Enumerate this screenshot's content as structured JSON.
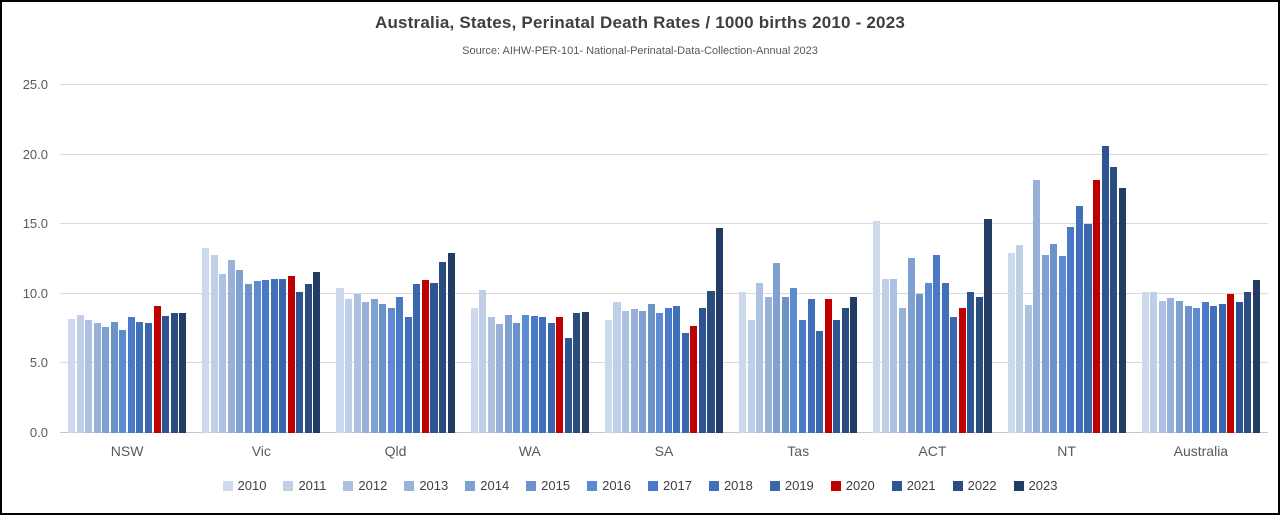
{
  "chart_data": {
    "type": "bar",
    "title": "Australia, States, Perinatal Death Rates / 1000 births 2010 - 2023",
    "subtitle": "Source: AIHW-PER-101- National-Perinatal-Data-Collection-Annual 2023",
    "categories": [
      "NSW",
      "Vic",
      "Qld",
      "WA",
      "SA",
      "Tas",
      "ACT",
      "NT",
      "Australia"
    ],
    "ylim": [
      0,
      25
    ],
    "grid": true,
    "legend_position": "bottom",
    "highlight_color": "#c00000",
    "yticks": [
      {
        "v": 0,
        "label": "0.0"
      },
      {
        "v": 5,
        "label": "5.0"
      },
      {
        "v": 10,
        "label": "10.0"
      },
      {
        "v": 15,
        "label": "15.0"
      },
      {
        "v": 20,
        "label": "20.0"
      },
      {
        "v": 25,
        "label": "25.0"
      }
    ],
    "series": [
      {
        "name": "2010",
        "color": "#cdd9ec",
        "values": [
          8.2,
          13.3,
          10.4,
          9.0,
          8.1,
          10.1,
          15.2,
          12.9,
          10.1
        ]
      },
      {
        "name": "2011",
        "color": "#c0cfe8",
        "values": [
          8.5,
          12.8,
          9.6,
          10.3,
          9.4,
          8.1,
          11.1,
          13.5,
          10.1
        ]
      },
      {
        "name": "2012",
        "color": "#adc2e2",
        "values": [
          8.1,
          11.4,
          10.0,
          8.3,
          8.8,
          10.8,
          11.1,
          9.2,
          9.5
        ]
      },
      {
        "name": "2013",
        "color": "#97b1d8",
        "values": [
          7.9,
          12.4,
          9.4,
          7.8,
          8.9,
          9.8,
          9.0,
          18.2,
          9.7
        ]
      },
      {
        "name": "2014",
        "color": "#7fa1d1",
        "values": [
          7.6,
          11.7,
          9.6,
          8.5,
          8.8,
          12.2,
          12.6,
          12.8,
          9.5
        ]
      },
      {
        "name": "2015",
        "color": "#6b92c9",
        "values": [
          8.0,
          10.7,
          9.3,
          7.9,
          9.3,
          9.8,
          10.0,
          13.6,
          9.1
        ]
      },
      {
        "name": "2016",
        "color": "#5d8bd2",
        "values": [
          7.4,
          10.9,
          9.0,
          8.5,
          8.6,
          10.4,
          10.8,
          12.7,
          9.0
        ]
      },
      {
        "name": "2017",
        "color": "#4a7ac7",
        "values": [
          8.3,
          11.0,
          9.8,
          8.4,
          9.0,
          8.1,
          12.8,
          14.8,
          9.4
        ]
      },
      {
        "name": "2018",
        "color": "#4070ba",
        "values": [
          8.0,
          11.1,
          8.3,
          8.3,
          9.1,
          9.6,
          10.8,
          16.3,
          9.1
        ]
      },
      {
        "name": "2019",
        "color": "#3a66ab",
        "values": [
          7.9,
          11.1,
          10.7,
          7.9,
          7.2,
          7.3,
          8.3,
          15.0,
          9.3
        ]
      },
      {
        "name": "2020",
        "color": "#c00000",
        "values": [
          9.1,
          11.3,
          11.0,
          8.3,
          7.7,
          9.6,
          9.0,
          18.2,
          10.0
        ]
      },
      {
        "name": "2021",
        "color": "#2e5493",
        "values": [
          8.4,
          10.1,
          10.8,
          6.8,
          9.0,
          8.1,
          10.1,
          20.6,
          9.4
        ]
      },
      {
        "name": "2022",
        "color": "#2b4c7e",
        "values": [
          8.6,
          10.7,
          12.3,
          8.6,
          10.2,
          9.0,
          9.8,
          19.1,
          10.1
        ]
      },
      {
        "name": "2023",
        "color": "#223c64",
        "values": [
          8.6,
          11.6,
          12.9,
          8.7,
          14.7,
          9.8,
          15.4,
          17.6,
          11.0
        ]
      }
    ]
  }
}
